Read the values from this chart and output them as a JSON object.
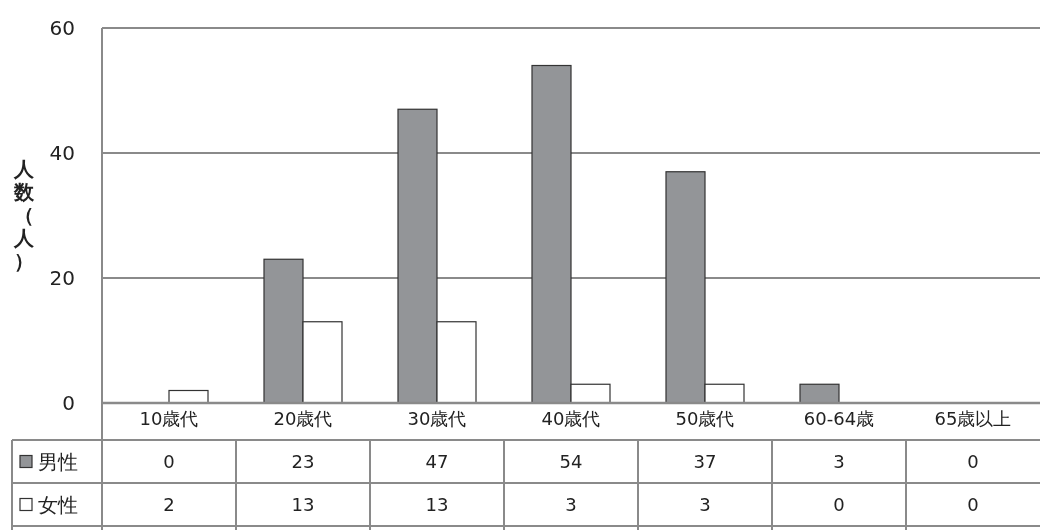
{
  "chart_data": {
    "type": "bar",
    "ylabel": "人数（人）",
    "categories": [
      "10歳代",
      "20歳代",
      "30歳代",
      "40歳代",
      "50歳代",
      "60-64歳",
      "65歳以上"
    ],
    "series": [
      {
        "name": "男性",
        "color": "#939598",
        "values": [
          0,
          23,
          47,
          54,
          37,
          3,
          0
        ]
      },
      {
        "name": "女性",
        "color": "#ffffff",
        "values": [
          2,
          13,
          13,
          3,
          3,
          0,
          0
        ]
      }
    ],
    "ylim": [
      0,
      60
    ],
    "yticks": [
      0,
      20,
      40,
      60
    ],
    "grid": "y",
    "legend": "bottom left",
    "data_labels": true
  }
}
